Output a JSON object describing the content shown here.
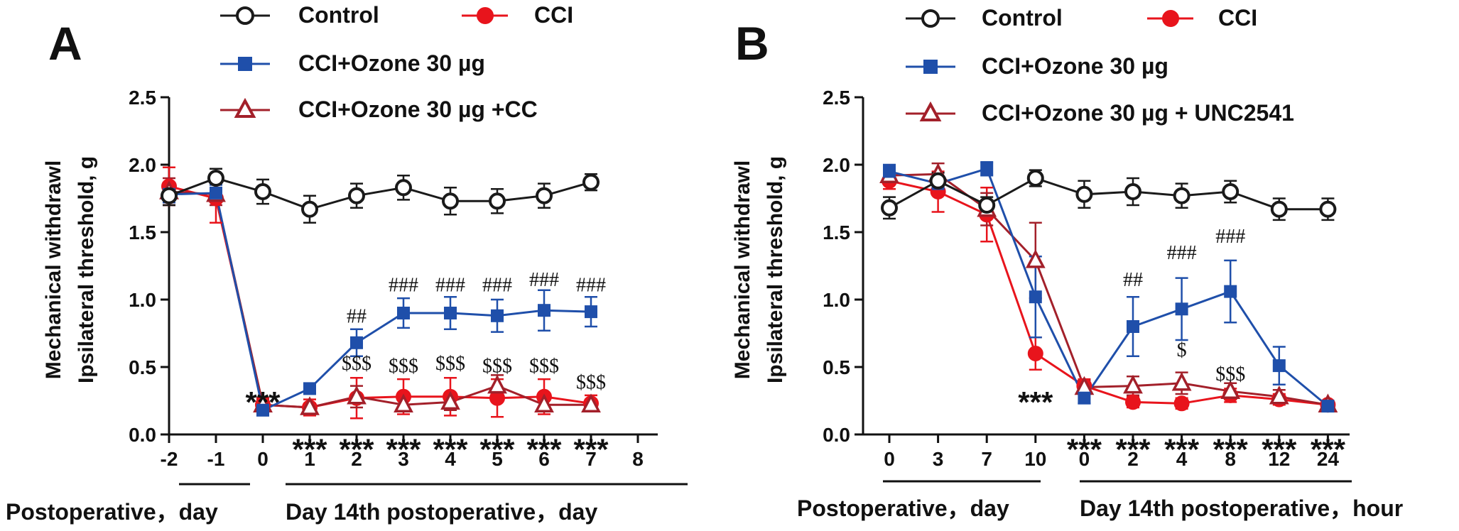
{
  "legend_labels": {
    "control": "Control",
    "cci": "CCI",
    "ozone": "CCI+Ozone 30 µg"
  },
  "colors": {
    "control": "#1a1a1a",
    "cci": "#e8141c",
    "ozone": "#1f4faa",
    "triangle": "#a3202a"
  },
  "chart_data": [
    {
      "panel": "A",
      "type": "line",
      "ylabel_line1": "Mechanical withdrawl",
      "ylabel_line2": "Ipsilateral threshold, g",
      "ylim": [
        0,
        2.5
      ],
      "yticks": [
        "0.0",
        "0.5",
        "1.0",
        "1.5",
        "2.0",
        "2.5"
      ],
      "x_positions": [
        -2,
        -1,
        0,
        1,
        2,
        3,
        4,
        5,
        6,
        7
      ],
      "xticks": [
        "-2",
        "-1",
        "0",
        "1",
        "2",
        "3",
        "4",
        "5",
        "6",
        "7",
        "8"
      ],
      "xtick_values": [
        -2,
        -1,
        0,
        1,
        2,
        3,
        4,
        5,
        6,
        7,
        8
      ],
      "group_labels": [
        "Postoperative，day",
        "Day 14th postoperative，day"
      ],
      "series": [
        {
          "key": "control",
          "name": "Control",
          "marker": "circle-open",
          "values": [
            1.77,
            1.9,
            1.8,
            1.67,
            1.77,
            1.83,
            1.73,
            1.73,
            1.77,
            1.87
          ],
          "err": [
            0.07,
            0.07,
            0.09,
            0.1,
            0.09,
            0.09,
            0.1,
            0.09,
            0.09,
            0.06
          ]
        },
        {
          "key": "cci",
          "name": "CCI",
          "marker": "circle-filled",
          "values": [
            1.84,
            1.75,
            0.22,
            0.2,
            0.27,
            0.28,
            0.28,
            0.27,
            0.28,
            0.23
          ],
          "err": [
            0.14,
            0.18,
            0.05,
            0.06,
            0.15,
            0.13,
            0.14,
            0.14,
            0.13,
            0.06
          ]
        },
        {
          "key": "ozone",
          "name": "CCI+Ozone 30 µg",
          "marker": "square-filled",
          "values": [
            1.78,
            1.79,
            0.18,
            0.34,
            0.68,
            0.9,
            0.9,
            0.88,
            0.92,
            0.91
          ],
          "err": [
            0.06,
            0.06,
            0.03,
            0.03,
            0.1,
            0.11,
            0.12,
            0.12,
            0.15,
            0.11
          ]
        },
        {
          "key": "triangle",
          "name": "CCI+Ozone 30 µg +CC",
          "marker": "triangle-open",
          "values": [
            1.8,
            1.78,
            0.22,
            0.2,
            0.28,
            0.22,
            0.24,
            0.36,
            0.22,
            0.22
          ],
          "err": [
            0.1,
            0.08,
            0.04,
            0.03,
            0.08,
            0.05,
            0.06,
            0.08,
            0.05,
            0.04
          ]
        }
      ],
      "annotations": [
        {
          "text": "***",
          "kind": "stars",
          "x": 0,
          "y": 0.3
        },
        {
          "text": "##",
          "x": 2,
          "y": 0.83
        },
        {
          "text": "###",
          "x": 3,
          "y": 1.06
        },
        {
          "text": "###",
          "x": 4,
          "y": 1.06
        },
        {
          "text": "###",
          "x": 5,
          "y": 1.06
        },
        {
          "text": "###",
          "x": 6,
          "y": 1.1
        },
        {
          "text": "###",
          "x": 7,
          "y": 1.06
        },
        {
          "text": "$$$",
          "x": 2,
          "y": 0.48
        },
        {
          "text": "$$$",
          "x": 3,
          "y": 0.46
        },
        {
          "text": "$$$",
          "x": 4,
          "y": 0.48
        },
        {
          "text": "$$$",
          "x": 5,
          "y": 0.46
        },
        {
          "text": "$$$",
          "x": 6,
          "y": 0.46
        },
        {
          "text": "$$$",
          "x": 7,
          "y": 0.34
        },
        {
          "text": "***",
          "kind": "stars",
          "x": 1,
          "y": -0.05
        },
        {
          "text": "***",
          "kind": "stars",
          "x": 2,
          "y": -0.05
        },
        {
          "text": "***",
          "kind": "stars",
          "x": 3,
          "y": -0.05
        },
        {
          "text": "***",
          "kind": "stars",
          "x": 4,
          "y": -0.05
        },
        {
          "text": "***",
          "kind": "stars",
          "x": 5,
          "y": -0.05
        },
        {
          "text": "***",
          "kind": "stars",
          "x": 6,
          "y": -0.05
        },
        {
          "text": "***",
          "kind": "stars",
          "x": 7,
          "y": -0.05
        }
      ]
    },
    {
      "panel": "B",
      "type": "line",
      "ylabel_line1": "Mechanical withdrawl",
      "ylabel_line2": "Ipsilateral threshold, g",
      "ylim": [
        0,
        2.5
      ],
      "yticks": [
        "0.0",
        "0.5",
        "1.0",
        "1.5",
        "2.0",
        "2.5"
      ],
      "x_positions": [
        0,
        1,
        2,
        3,
        4,
        5,
        6,
        7,
        8,
        9
      ],
      "xticks": [
        "0",
        "3",
        "7",
        "10",
        "0",
        "2",
        "4",
        "8",
        "12",
        "24"
      ],
      "xtick_values": [
        0,
        1,
        2,
        3,
        4,
        5,
        6,
        7,
        8,
        9
      ],
      "group_labels": [
        "Postoperative，day",
        "Day 14th postoperative，hour"
      ],
      "series": [
        {
          "key": "control",
          "name": "Control",
          "marker": "circle-open",
          "values": [
            1.68,
            1.88,
            1.7,
            1.9,
            1.78,
            1.8,
            1.77,
            1.8,
            1.67,
            1.67
          ],
          "err": [
            0.08,
            0.06,
            0.06,
            0.06,
            0.1,
            0.1,
            0.09,
            0.08,
            0.08,
            0.08
          ]
        },
        {
          "key": "cci",
          "name": "CCI",
          "marker": "circle-filled",
          "values": [
            1.88,
            1.8,
            1.63,
            0.6,
            0.36,
            0.24,
            0.23,
            0.29,
            0.26,
            0.22
          ],
          "err": [
            0.06,
            0.15,
            0.2,
            0.12,
            0.05,
            0.04,
            0.04,
            0.05,
            0.04,
            0.03
          ]
        },
        {
          "key": "ozone",
          "name": "CCI+Ozone 30 µg",
          "marker": "square-filled",
          "values": [
            1.95,
            1.86,
            1.97,
            1.02,
            0.27,
            0.8,
            0.93,
            1.06,
            0.51,
            0.21
          ],
          "err": [
            0.05,
            0.05,
            0.05,
            0.3,
            0.04,
            0.22,
            0.23,
            0.23,
            0.14,
            0.03
          ]
        },
        {
          "key": "triangle",
          "name": "CCI+Ozone 30 µg + UNC2541",
          "marker": "triangle-open",
          "values": [
            1.92,
            1.93,
            1.67,
            1.29,
            0.35,
            0.36,
            0.38,
            0.32,
            0.28,
            0.22
          ],
          "err": [
            0.05,
            0.08,
            0.12,
            0.28,
            0.05,
            0.07,
            0.08,
            0.06,
            0.05,
            0.03
          ]
        }
      ],
      "annotations": [
        {
          "text": "***",
          "kind": "stars",
          "x": 3,
          "y": 0.3
        },
        {
          "text": "##",
          "x": 5,
          "y": 1.1
        },
        {
          "text": "###",
          "x": 6,
          "y": 1.3
        },
        {
          "text": "###",
          "x": 7,
          "y": 1.42
        },
        {
          "text": "$",
          "x": 6,
          "y": 0.58
        },
        {
          "text": "$$$",
          "x": 7,
          "y": 0.4
        },
        {
          "text": "***",
          "kind": "stars",
          "x": 4,
          "y": -0.05
        },
        {
          "text": "***",
          "kind": "stars",
          "x": 5,
          "y": -0.05
        },
        {
          "text": "***",
          "kind": "stars",
          "x": 6,
          "y": -0.05
        },
        {
          "text": "***",
          "kind": "stars",
          "x": 7,
          "y": -0.05
        },
        {
          "text": "***",
          "kind": "stars",
          "x": 8,
          "y": -0.05
        },
        {
          "text": "***",
          "kind": "stars",
          "x": 9,
          "y": -0.05
        }
      ]
    }
  ]
}
